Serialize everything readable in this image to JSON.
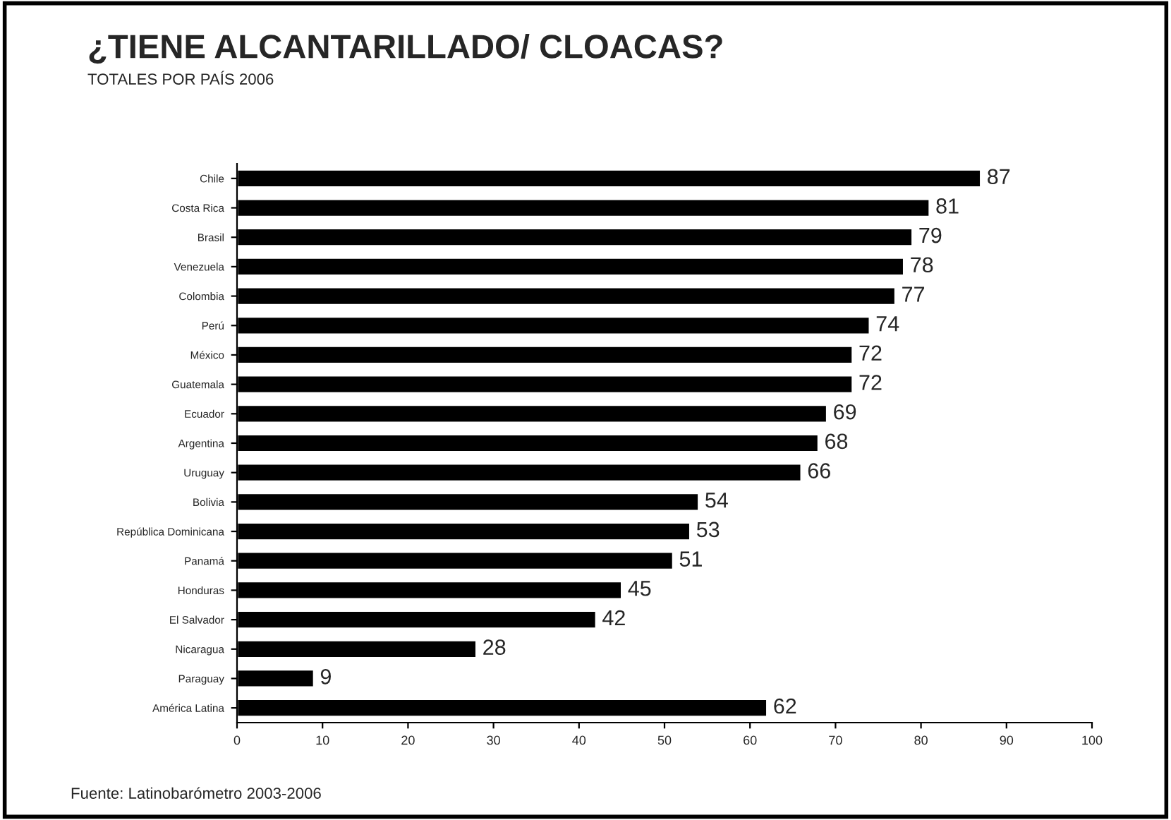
{
  "chart_data": {
    "type": "bar",
    "orientation": "horizontal",
    "title": "¿TIENE ALCANTARILLADO/ CLOACAS?",
    "subtitle": "TOTALES POR PAÍS 2006",
    "categories": [
      "Chile",
      "Costa Rica",
      "Brasil",
      "Venezuela",
      "Colombia",
      "Perú",
      "México",
      "Guatemala",
      "Ecuador",
      "Argentina",
      "Uruguay",
      "Bolivia",
      "República Dominicana",
      "Panamá",
      "Honduras",
      "El Salvador",
      "Nicaragua",
      "Paraguay",
      "América Latina"
    ],
    "values": [
      87,
      81,
      79,
      78,
      77,
      74,
      72,
      72,
      69,
      68,
      66,
      54,
      53,
      51,
      45,
      42,
      28,
      9,
      62
    ],
    "color": "#000000",
    "data_labels": true,
    "xlim": [
      0,
      100
    ],
    "xticks": [
      0,
      10,
      20,
      30,
      40,
      50,
      60,
      70,
      80,
      90,
      100
    ],
    "grid": false,
    "legend": false,
    "annotations": [
      "Fuente: Latinobarómetro 2003-2006"
    ]
  }
}
